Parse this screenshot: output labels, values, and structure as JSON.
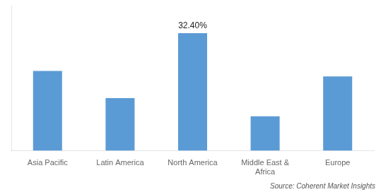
{
  "chart_data": {
    "type": "bar",
    "categories": [
      "Asia Pacific",
      "Latin America",
      "North America",
      "Middle East &\nAfrica",
      "Europe"
    ],
    "values": [
      22.0,
      14.5,
      32.4,
      9.5,
      20.5
    ],
    "color": "#5B9BD5",
    "ylim": [
      0,
      40
    ],
    "grid": false,
    "tick_labels": "x",
    "annotations": [
      {
        "text": "32.40%",
        "x": "North America",
        "y": 32.4
      }
    ],
    "source": "Source: Coherent Market Insights"
  }
}
